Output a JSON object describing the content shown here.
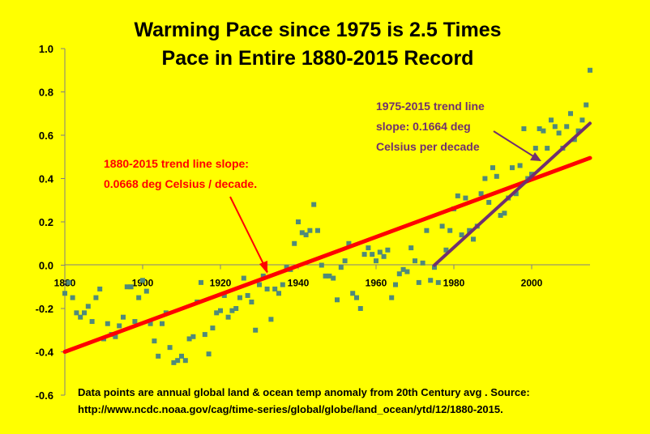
{
  "chart_data": {
    "type": "scatter",
    "title_lines": [
      "Warming Pace since 1975 is 2.5 Times",
      "Pace in Entire 1880-2015 Record"
    ],
    "xlabel": "",
    "ylabel": "",
    "xlim": [
      1880,
      2015
    ],
    "ylim": [
      -0.6,
      1.0
    ],
    "y_ticks": [
      "1.0",
      "0.8",
      "0.6",
      "0.4",
      "0.2",
      "0.0",
      "-0.2",
      "-0.4",
      "-0.6"
    ],
    "y_tick_values": [
      1.0,
      0.8,
      0.6,
      0.4,
      0.2,
      0.0,
      -0.2,
      -0.4,
      -0.6
    ],
    "x_ticks": [
      "1880",
      "1900",
      "1920",
      "1940",
      "1960",
      "1980",
      "2000"
    ],
    "x_tick_values": [
      1880,
      1900,
      1920,
      1940,
      1960,
      1980,
      2000
    ],
    "grid": false,
    "legend": "none",
    "point_color": "#4F8A7A",
    "points": {
      "x": [
        1880,
        1881,
        1882,
        1883,
        1884,
        1885,
        1886,
        1887,
        1888,
        1889,
        1890,
        1891,
        1892,
        1893,
        1894,
        1895,
        1896,
        1897,
        1898,
        1899,
        1900,
        1901,
        1902,
        1903,
        1904,
        1905,
        1906,
        1907,
        1908,
        1909,
        1910,
        1911,
        1912,
        1913,
        1914,
        1915,
        1916,
        1917,
        1918,
        1919,
        1920,
        1921,
        1922,
        1923,
        1924,
        1925,
        1926,
        1927,
        1928,
        1929,
        1930,
        1931,
        1932,
        1933,
        1934,
        1935,
        1936,
        1937,
        1938,
        1939,
        1940,
        1941,
        1942,
        1943,
        1944,
        1945,
        1946,
        1947,
        1948,
        1949,
        1950,
        1951,
        1952,
        1953,
        1954,
        1955,
        1956,
        1957,
        1958,
        1959,
        1960,
        1961,
        1962,
        1963,
        1964,
        1965,
        1966,
        1967,
        1968,
        1969,
        1970,
        1971,
        1972,
        1973,
        1974,
        1975,
        1976,
        1977,
        1978,
        1979,
        1980,
        1981,
        1982,
        1983,
        1984,
        1985,
        1986,
        1987,
        1988,
        1989,
        1990,
        1991,
        1992,
        1993,
        1994,
        1995,
        1996,
        1997,
        1998,
        1999,
        2000,
        2001,
        2002,
        2003,
        2004,
        2005,
        2006,
        2007,
        2008,
        2009,
        2010,
        2011,
        2012,
        2013,
        2014,
        2015
      ],
      "y": [
        -0.13,
        -0.08,
        -0.15,
        -0.22,
        -0.24,
        -0.22,
        -0.19,
        -0.26,
        -0.15,
        -0.11,
        -0.34,
        -0.27,
        -0.32,
        -0.33,
        -0.28,
        -0.24,
        -0.1,
        -0.1,
        -0.26,
        -0.15,
        -0.07,
        -0.12,
        -0.27,
        -0.35,
        -0.42,
        -0.27,
        -0.22,
        -0.38,
        -0.45,
        -0.44,
        -0.42,
        -0.44,
        -0.34,
        -0.33,
        -0.17,
        -0.08,
        -0.32,
        -0.41,
        -0.29,
        -0.22,
        -0.21,
        -0.14,
        -0.24,
        -0.21,
        -0.2,
        -0.15,
        -0.06,
        -0.14,
        -0.17,
        -0.3,
        -0.09,
        -0.05,
        -0.11,
        -0.25,
        -0.11,
        -0.13,
        -0.09,
        -0.01,
        -0.02,
        0.1,
        0.2,
        0.15,
        0.14,
        0.16,
        0.28,
        0.16,
        0.0,
        -0.05,
        -0.05,
        -0.06,
        -0.16,
        -0.01,
        0.02,
        0.1,
        -0.13,
        -0.15,
        -0.2,
        0.05,
        0.08,
        0.05,
        0.02,
        0.06,
        0.04,
        0.07,
        -0.15,
        -0.09,
        -0.04,
        -0.02,
        -0.03,
        0.08,
        0.02,
        -0.08,
        0.01,
        0.16,
        -0.07,
        -0.01,
        -0.08,
        0.18,
        0.07,
        0.16,
        0.26,
        0.32,
        0.14,
        0.31,
        0.16,
        0.12,
        0.18,
        0.33,
        0.4,
        0.29,
        0.45,
        0.41,
        0.23,
        0.24,
        0.31,
        0.45,
        0.33,
        0.46,
        0.63,
        0.4,
        0.42,
        0.54,
        0.63,
        0.62,
        0.54,
        0.67,
        0.64,
        0.61,
        0.54,
        0.64,
        0.7,
        0.58,
        0.62,
        0.67,
        0.74,
        0.9
      ]
    },
    "trend_lines": [
      {
        "label_lines": [
          "1880-2015 trend line slope:",
          "0.0668 deg Celsius / decade."
        ],
        "color": "#FF0000",
        "x": [
          1880,
          2015
        ],
        "y": [
          -0.4,
          0.495
        ]
      },
      {
        "label_lines": [
          "1975-2015 trend line",
          "slope: 0.1664 deg",
          "Celsius per decade"
        ],
        "color": "#70306F",
        "x": [
          1975,
          2015
        ],
        "y": [
          0.0,
          0.655
        ]
      }
    ],
    "source_lines": [
      "Data points are annual global land & ocean temp anomaly from 20th Century avg . Source:",
      "http://www.ncdc.noaa.gov/cag/time-series/global/globe/land_ocean/ytd/12/1880-2015."
    ]
  }
}
